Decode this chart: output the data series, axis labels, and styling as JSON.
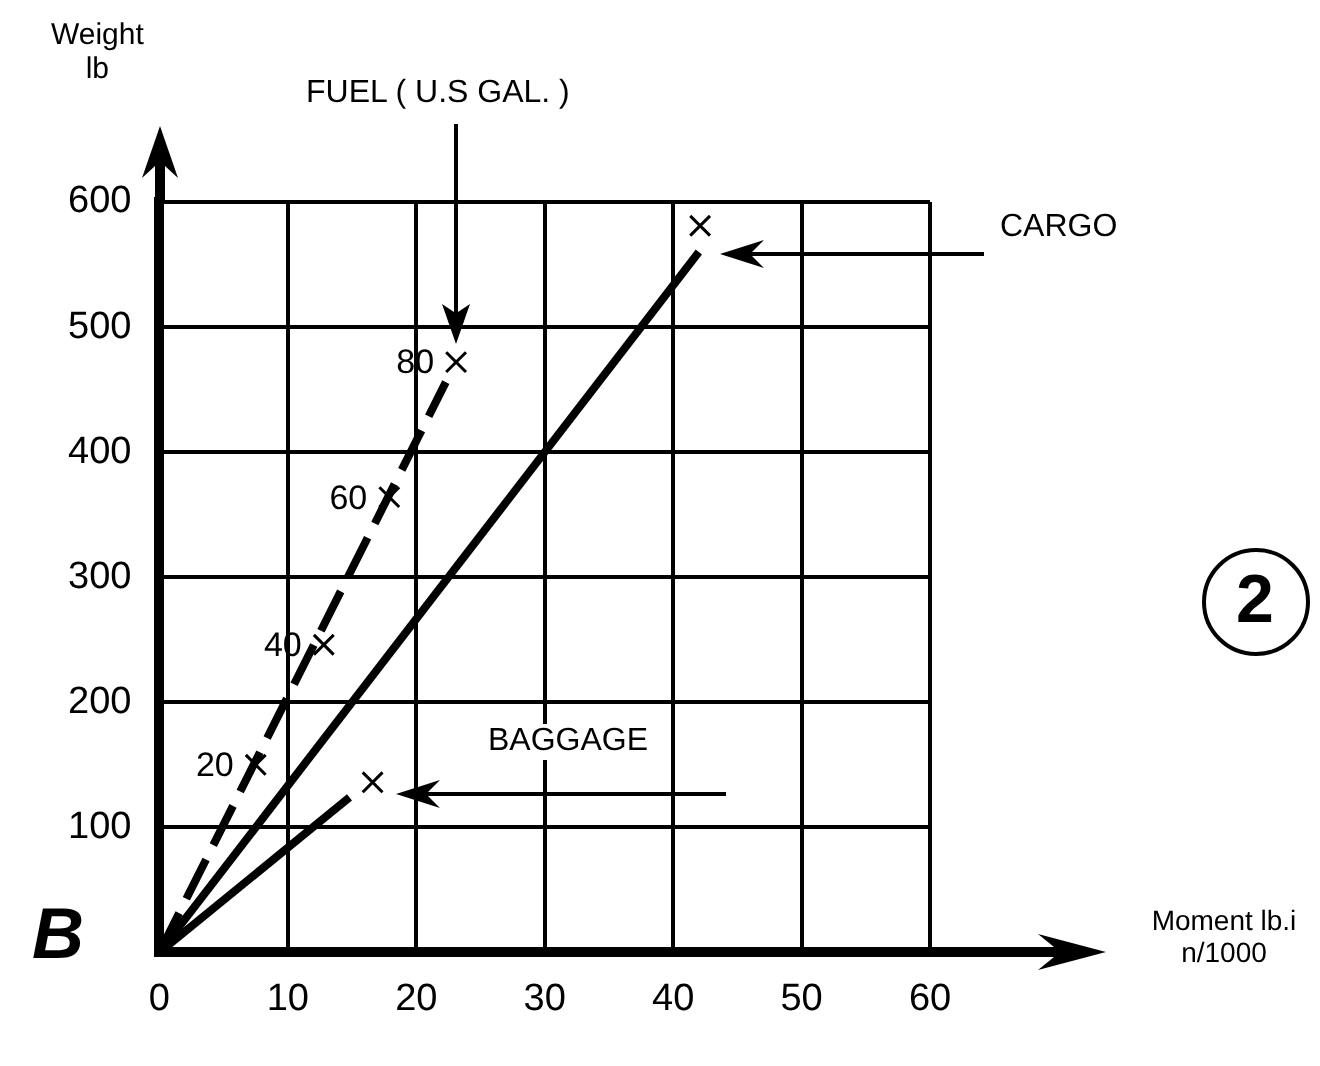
{
  "chart_data": {
    "type": "line",
    "ylabel": "Weight lb",
    "xlim": [
      0,
      60
    ],
    "ylim": [
      0,
      600
    ],
    "xticks": [
      0,
      10,
      20,
      30,
      40,
      50,
      60
    ],
    "yticks": [
      100,
      200,
      300,
      400,
      500,
      600
    ],
    "grid": true,
    "legend": false,
    "series": [
      {
        "line_style": "dashed",
        "marker": "none",
        "color": "#000000",
        "x": [
          0,
          22.3
        ],
        "values": [
          0,
          456
        ]
      },
      {
        "type": "scatter",
        "marker": "cross",
        "color": "#000000",
        "x": [
          7.5,
          12.8,
          17.9,
          23.1
        ],
        "values": [
          150,
          246,
          364,
          472
        ]
      },
      {
        "line_style": "solid",
        "marker": "none",
        "color": "#000000",
        "x": [
          0,
          42
        ],
        "values": [
          0,
          560
        ]
      },
      {
        "type": "scatter",
        "marker": "cross",
        "color": "#000000",
        "x": [
          42.1
        ],
        "values": [
          581
        ]
      },
      {
        "line_style": "solid",
        "marker": "none",
        "color": "#000000",
        "x": [
          0,
          14.8
        ],
        "values": [
          0,
          124
        ]
      },
      {
        "type": "scatter",
        "marker": "cross",
        "color": "#000000",
        "x": [
          16.6
        ],
        "values": [
          136
        ]
      }
    ],
    "annotations": [
      "FUEL ( U.S GAL. )",
      "CARGO",
      "BAGGAGE",
      "B",
      "2",
      "Moment lb.in/1000",
      {
        "text": "20",
        "x": 7.5,
        "y": 150
      },
      {
        "text": "40",
        "x": 12.8,
        "y": 246
      },
      {
        "text": "60",
        "x": 17.9,
        "y": 364
      },
      {
        "text": "80",
        "x": 23.1,
        "y": 472
      }
    ]
  }
}
